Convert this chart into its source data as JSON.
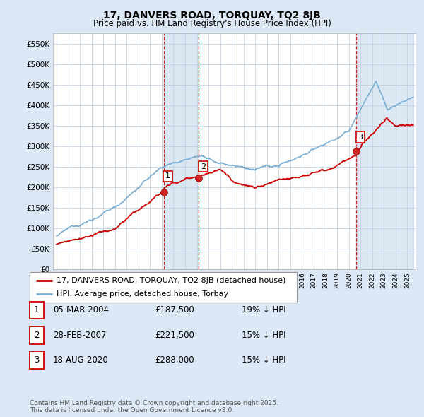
{
  "title": "17, DANVERS ROAD, TORQUAY, TQ2 8JB",
  "subtitle": "Price paid vs. HM Land Registry's House Price Index (HPI)",
  "ylim": [
    0,
    575000
  ],
  "yticks": [
    0,
    50000,
    100000,
    150000,
    200000,
    250000,
    300000,
    350000,
    400000,
    450000,
    500000,
    550000
  ],
  "ytick_labels": [
    "£0",
    "£50K",
    "£100K",
    "£150K",
    "£200K",
    "£250K",
    "£300K",
    "£350K",
    "£400K",
    "£450K",
    "£500K",
    "£550K"
  ],
  "background_color": "#dce8f5",
  "plot_bg_color": "#ffffff",
  "red_line_color": "#cc0000",
  "blue_line_color": "#7aadd4",
  "transaction_dates": [
    2004.17,
    2007.16,
    2020.63
  ],
  "transaction_prices": [
    187500,
    221500,
    288000
  ],
  "transaction_labels": [
    "1",
    "2",
    "3"
  ],
  "vline_color": "#cc0000",
  "vspan_color": "#c5d9ee",
  "legend_label_red": "17, DANVERS ROAD, TORQUAY, TQ2 8JB (detached house)",
  "legend_label_blue": "HPI: Average price, detached house, Torbay",
  "table_data": [
    [
      "1",
      "05-MAR-2004",
      "£187,500",
      "19% ↓ HPI"
    ],
    [
      "2",
      "28-FEB-2007",
      "£221,500",
      "15% ↓ HPI"
    ],
    [
      "3",
      "18-AUG-2020",
      "£288,000",
      "15% ↓ HPI"
    ]
  ],
  "footer_text": "Contains HM Land Registry data © Crown copyright and database right 2025.\nThis data is licensed under the Open Government Licence v3.0.",
  "title_fontsize": 10,
  "subtitle_fontsize": 8.5,
  "tick_fontsize": 7.5,
  "legend_fontsize": 8,
  "table_fontsize": 8.5
}
